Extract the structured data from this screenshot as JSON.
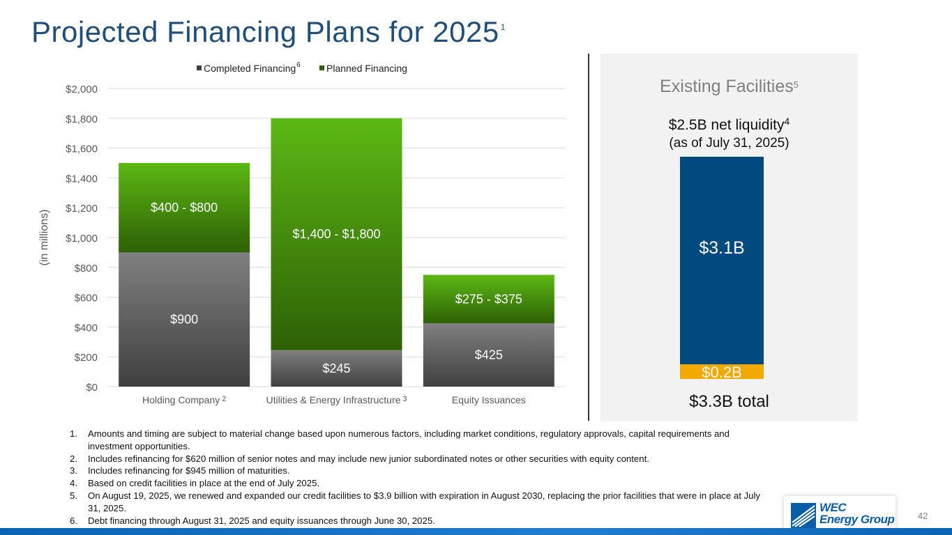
{
  "title": "Projected Financing Plans for 2025",
  "title_footnote": "1",
  "chart_data": {
    "type": "bar",
    "stacked": true,
    "ylabel": "(in millions)",
    "ylim": [
      0,
      2000
    ],
    "yticks": [
      0,
      200,
      400,
      600,
      800,
      1000,
      1200,
      1400,
      1600,
      1800,
      2000
    ],
    "ytick_labels": [
      "$0",
      "$200",
      "$400",
      "$600",
      "$800",
      "$1,000",
      "$1,200",
      "$1,400",
      "$1,600",
      "$1,800",
      "$2,000"
    ],
    "grid": true,
    "legend_position": "top",
    "categories": [
      "Holding Company",
      "Utilities & Energy Infrastructure",
      "Equity Issuances"
    ],
    "category_footnotes": [
      "2",
      "3",
      ""
    ],
    "series": [
      {
        "name": "Completed Financing",
        "name_footnote": "6",
        "color": "#808080",
        "color_dark": "#404040",
        "values": [
          900,
          245,
          425
        ],
        "labels": [
          "$900",
          "$245",
          "$425"
        ]
      },
      {
        "name": "Planned Financing",
        "name_footnote": "",
        "color": "#5cb814",
        "color_dark": "#2e6106",
        "values": [
          600,
          1555,
          325
        ],
        "labels": [
          "$400 - $800",
          "$1,400 - $1,800",
          "$275 - $375"
        ]
      }
    ]
  },
  "facilities": {
    "heading": "Existing Facilities",
    "heading_footnote": "5",
    "liquidity": "$2.5B net liquidity",
    "liquidity_footnote": "4",
    "as_of": "(as of July 31, 2025)",
    "segments": [
      {
        "label": "$3.1B",
        "value": 3.1,
        "color": "#004a7f"
      },
      {
        "label": "$0.2B",
        "value": 0.2,
        "color": "#f2a900"
      }
    ],
    "total": "$3.3B total"
  },
  "footnotes": [
    {
      "num": "1.",
      "text": "Amounts and timing are subject to material change based upon numerous factors, including market conditions, regulatory approvals, capital requirements and investment opportunities."
    },
    {
      "num": "2.",
      "text": "Includes refinancing for $620 million of senior notes and may include new junior subordinated notes or other securities with equity content."
    },
    {
      "num": "3.",
      "text": "Includes refinancing for $945 million of maturities."
    },
    {
      "num": "4.",
      "text": "Based on credit facilities in place at the end of July 2025."
    },
    {
      "num": "5.",
      "text": "On August 19, 2025, we renewed and expanded our credit facilities to $3.9 billion with expiration in August 2030, replacing the prior facilities that were in place at July 31, 2025."
    },
    {
      "num": "6.",
      "text": "Debt financing through August 31, 2025 and equity issuances through June 30, 2025."
    }
  ],
  "logo": {
    "line1": "WEC",
    "line2": "Energy Group"
  },
  "page_number": "42"
}
